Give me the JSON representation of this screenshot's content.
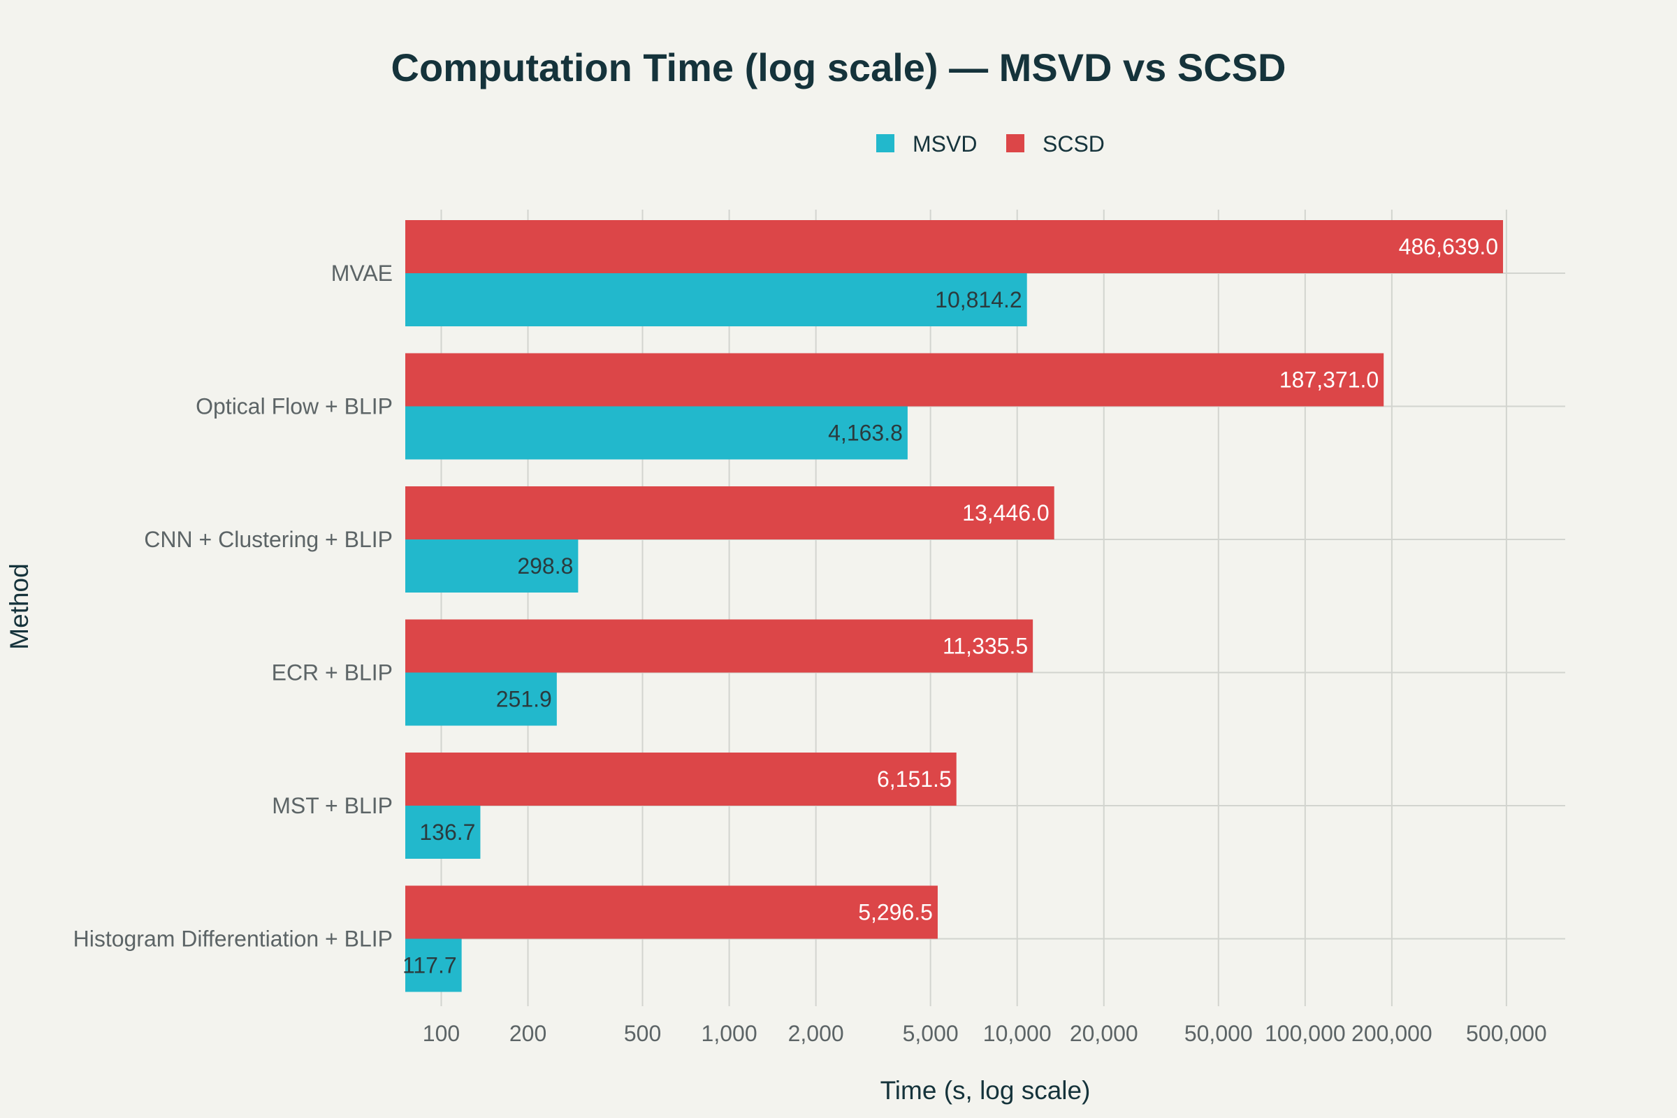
{
  "chart_data": {
    "type": "bar",
    "orientation": "horizontal",
    "title": "Computation Time (log scale) — MSVD vs SCSD",
    "xlabel": "Time (s, log scale)",
    "ylabel": "Method",
    "xscale": "log",
    "xlim": [
      75,
      800000
    ],
    "xticks": [
      100,
      200,
      500,
      1000,
      2000,
      5000,
      10000,
      20000,
      50000,
      100000,
      200000,
      500000
    ],
    "xtick_labels": [
      "100",
      "200",
      "500",
      "1,000",
      "2,000",
      "5,000",
      "10,000",
      "20,000",
      "50,000",
      "100,000",
      "200,000",
      "500,000"
    ],
    "categories": [
      "MVAE",
      "Optical Flow + BLIP",
      "CNN + Clustering + BLIP",
      "ECR + BLIP",
      "MST + BLIP",
      "Histogram Differentiation + BLIP"
    ],
    "series": [
      {
        "name": "MSVD",
        "color": "#22b8cc",
        "values": [
          10814.2,
          4163.8,
          298.8,
          251.9,
          136.7,
          117.7
        ],
        "labels": [
          "10,814.2",
          "4,163.8",
          "298.8",
          "251.9",
          "136.7",
          "117.7"
        ]
      },
      {
        "name": "SCSD",
        "color": "#dc4648",
        "values": [
          486639.0,
          187371.0,
          13446.0,
          11335.5,
          6151.5,
          5296.5
        ],
        "labels": [
          "486,639.0",
          "187,371.0",
          "13,446.0",
          "11,335.5",
          "6,151.5",
          "5,296.5"
        ]
      }
    ],
    "grid": true,
    "legend_position": "top-center"
  }
}
